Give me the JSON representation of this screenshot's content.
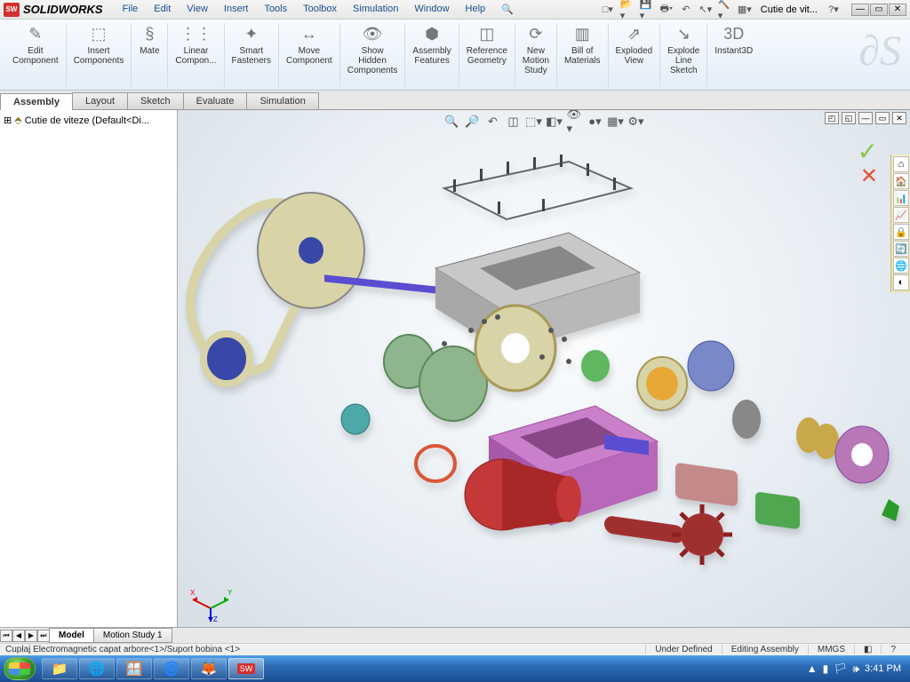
{
  "app": {
    "logo": "SW",
    "name": "SOLIDWORKS"
  },
  "menu": [
    "File",
    "Edit",
    "View",
    "Insert",
    "Tools",
    "Toolbox",
    "Simulation",
    "Window",
    "Help"
  ],
  "doc_combo": "Cutie de vit...",
  "ribbon": [
    {
      "icon": "✎",
      "label": "Edit\nComponent"
    },
    {
      "icon": "⬚",
      "label": "Insert\nComponents"
    },
    {
      "icon": "§",
      "label": "Mate"
    },
    {
      "icon": "⋮⋮",
      "label": "Linear\nCompon..."
    },
    {
      "icon": "✦",
      "label": "Smart\nFasteners"
    },
    {
      "icon": "↔",
      "label": "Move\nComponent"
    },
    {
      "icon": "👁",
      "label": "Show\nHidden\nComponents"
    },
    {
      "icon": "⬢",
      "label": "Assembly\nFeatures"
    },
    {
      "icon": "◫",
      "label": "Reference\nGeometry"
    },
    {
      "icon": "⟳",
      "label": "New\nMotion\nStudy"
    },
    {
      "icon": "▥",
      "label": "Bill of\nMaterials"
    },
    {
      "icon": "⇗",
      "label": "Exploded\nView"
    },
    {
      "icon": "↘",
      "label": "Explode\nLine\nSketch"
    },
    {
      "icon": "3D",
      "label": "Instant3D"
    }
  ],
  "tabs": [
    "Assembly",
    "Layout",
    "Sketch",
    "Evaluate",
    "Simulation"
  ],
  "active_tab": 0,
  "tree": {
    "root": "Cutie de viteze  (Default<Di..."
  },
  "right_panel_icons": [
    "⌂",
    "🏠",
    "📊",
    "📈",
    "🔒",
    "🔄",
    "🌐",
    "◐"
  ],
  "triad_labels": {
    "x": "X",
    "y": "Y",
    "z": "Z"
  },
  "bottom_tabs": [
    "Model",
    "Motion Study 1"
  ],
  "active_bottom_tab": 0,
  "status": {
    "left": "Cuplaj Electromagnetic capat arbore<1>/Suport bobina <1>",
    "under_defined": "Under Defined",
    "mode": "Editing Assembly",
    "units": "MMGS",
    "extra": "◧"
  },
  "taskbar": {
    "pinned_icons": [
      "📁",
      "🌐",
      "🪟",
      "🌀",
      "🦊"
    ],
    "active_app": "SW",
    "tray": {
      "icons": [
        "▲",
        "▮",
        "🏳",
        "🕪"
      ],
      "time": "3:41 PM"
    }
  },
  "colors": {
    "pulley": "#d8d4a8",
    "pulley_hub": "#3948a8",
    "shaft1": "#5a4dd0",
    "housing_top": "#c8c8c8",
    "housing_bottom": "#c97fc9",
    "motor": "#c43838",
    "gear": "#8fb58f",
    "gear_small": "#4fa8a8",
    "ring": "#d85838",
    "cylinder1": "#c48a8a",
    "cylinder2": "#4fa850",
    "flange": "#b878b8",
    "flange2": "#7888c8",
    "fan": "#a03030",
    "bolt": "#444"
  }
}
